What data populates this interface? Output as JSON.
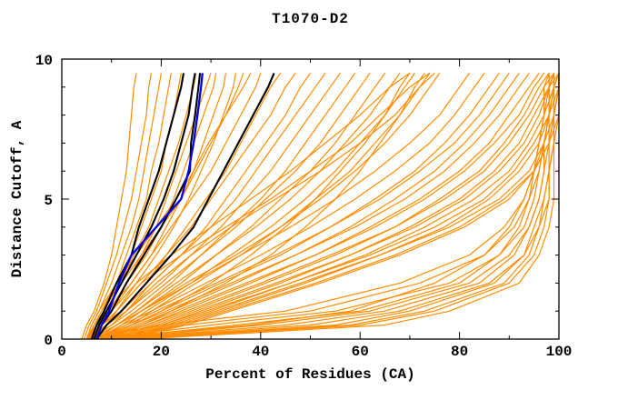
{
  "figure": {
    "background": "#ffffff"
  },
  "chart_data": {
    "type": "line",
    "title": "T1070-D2",
    "xlabel": "Percent of Residues (CA)",
    "ylabel": "Distance Cutoff, A",
    "xlim": [
      0,
      100
    ],
    "ylim": [
      0,
      10
    ],
    "x_major_ticks": [
      0,
      20,
      40,
      60,
      80,
      100
    ],
    "x_minor_ticks": [
      10,
      30,
      50,
      70,
      90
    ],
    "y_major_ticks": [
      0,
      5,
      10
    ],
    "y_minor_ticks": [
      1,
      2,
      3,
      4,
      6,
      7,
      8,
      9
    ],
    "grid": false,
    "legend": "none",
    "axis_color": "#000000",
    "series_colors": {
      "models": "#ff8c00",
      "reference": "#000000",
      "highlight": "#0000ee"
    },
    "cutoffs": [
      0,
      0.5,
      1,
      2,
      3,
      4,
      5,
      6,
      7,
      8,
      9,
      9.5
    ],
    "highlight_series": {
      "name": "blue-model",
      "percent_values": [
        7,
        8,
        9.5,
        11.5,
        14,
        19,
        24,
        25.5,
        26.5,
        27.3,
        28,
        28.3
      ]
    },
    "black_series": [
      {
        "name": "black-model-1",
        "percent_values": [
          6,
          7,
          8.5,
          11,
          14,
          15.5,
          17.5,
          19.5,
          21,
          22.5,
          24,
          24.5
        ]
      },
      {
        "name": "black-model-2",
        "percent_values": [
          6.5,
          7.5,
          9,
          12,
          15,
          18,
          20.5,
          22.5,
          24,
          25.5,
          26.3,
          26.8
        ]
      },
      {
        "name": "black-model-3",
        "percent_values": [
          7,
          8,
          10,
          13,
          16.5,
          20,
          23,
          25.8,
          26,
          26.8,
          27.5,
          27.8
        ]
      },
      {
        "name": "black-model-4",
        "percent_values": [
          7,
          9,
          12,
          17,
          22,
          26.5,
          29.5,
          32.5,
          35.5,
          38.5,
          41.5,
          42.7
        ]
      }
    ],
    "orange_series": {
      "name": "predicted-models",
      "percent_values_list": [
        [
          4,
          5,
          6.5,
          8.5,
          10,
          11,
          12,
          13,
          13.5,
          14,
          14.5,
          15
        ],
        [
          4.5,
          5.5,
          7,
          9,
          11,
          12.5,
          14,
          15,
          16,
          17,
          17.5,
          18
        ],
        [
          5,
          6,
          7.5,
          10,
          12,
          14,
          15.5,
          16.5,
          17.5,
          18.5,
          19.5,
          20
        ],
        [
          5,
          6.5,
          8,
          11,
          13,
          15,
          17,
          18,
          19.5,
          20.5,
          21.5,
          22
        ],
        [
          5.5,
          7,
          9,
          12,
          14,
          16,
          18,
          20,
          21,
          22.5,
          23.5,
          24
        ],
        [
          5,
          6.5,
          8.5,
          11.5,
          14.5,
          17.5,
          19.5,
          21.5,
          23.5,
          25,
          26.5,
          27
        ],
        [
          6,
          7.5,
          10,
          13,
          16,
          19,
          21,
          23,
          25,
          27,
          29,
          30
        ],
        [
          5.5,
          7,
          9.5,
          13,
          17,
          20,
          22.5,
          24.5,
          26.5,
          28.5,
          30.5,
          31
        ],
        [
          5,
          7,
          9,
          14,
          18,
          21,
          24,
          26.5,
          28.5,
          30.5,
          32.5,
          33
        ],
        [
          6,
          8,
          11,
          15,
          19,
          22.5,
          25.5,
          28,
          30.5,
          32.5,
          34.5,
          35
        ],
        [
          5.5,
          6.5,
          8,
          12,
          16,
          20,
          24,
          27,
          30,
          33,
          35.5,
          36.5
        ],
        [
          5,
          6,
          7.5,
          11,
          15,
          19,
          23,
          26.5,
          29.5,
          33,
          36.5,
          38
        ],
        [
          5,
          7,
          10,
          14,
          18,
          22,
          26,
          30,
          33,
          36,
          39,
          40
        ],
        [
          6,
          8,
          12,
          17,
          21,
          25,
          29,
          33,
          36,
          39,
          42,
          44
        ],
        [
          5,
          8,
          11,
          16,
          21,
          26,
          30,
          34,
          38,
          42,
          45,
          47
        ],
        [
          6,
          9,
          13,
          18,
          24,
          29,
          33,
          37,
          41,
          45,
          48,
          50
        ],
        [
          5,
          9,
          12,
          18,
          24,
          30,
          35,
          39,
          43,
          47,
          51,
          53
        ],
        [
          6,
          10,
          13,
          20,
          26,
          32,
          37,
          42,
          46,
          50,
          54,
          56
        ],
        [
          7,
          11,
          15,
          22,
          28,
          34,
          40,
          45,
          49,
          53,
          57,
          59
        ],
        [
          5,
          10,
          14,
          21,
          28,
          35,
          41,
          47,
          52,
          56,
          60,
          62
        ],
        [
          7,
          12,
          16,
          24,
          31,
          38,
          44,
          50,
          55,
          59,
          63,
          65
        ],
        [
          6,
          11,
          15,
          23,
          31,
          39,
          46,
          52,
          57,
          62,
          66,
          68
        ],
        [
          7,
          13,
          17,
          26,
          34,
          42,
          49,
          55,
          60,
          65,
          69,
          71
        ],
        [
          8,
          14,
          18,
          27,
          36,
          44,
          51,
          58,
          63,
          68,
          72,
          74
        ],
        [
          5,
          8,
          10,
          15,
          22,
          30,
          38,
          46,
          53,
          60,
          66,
          70
        ],
        [
          6,
          9,
          11,
          16,
          24,
          33,
          42,
          50,
          58,
          64,
          70,
          74
        ],
        [
          7,
          14,
          20,
          30,
          38,
          45,
          51,
          56,
          61,
          65,
          68,
          70
        ],
        [
          8,
          16,
          22,
          33,
          42,
          49,
          55,
          60,
          64,
          68,
          71,
          73
        ],
        [
          5,
          9,
          13,
          19,
          26,
          34,
          43,
          52,
          60,
          67,
          72,
          75
        ],
        [
          6,
          11,
          16,
          25,
          35,
          44,
          52,
          59,
          65,
          70,
          74,
          76
        ],
        [
          6,
          11,
          16,
          26,
          36,
          46,
          55,
          63,
          70,
          76,
          80,
          82
        ],
        [
          7,
          12,
          18,
          29,
          40,
          50,
          59,
          67,
          74,
          79,
          83,
          85
        ],
        [
          8,
          14,
          20,
          32,
          44,
          54,
          63,
          71,
          77,
          82,
          86,
          88
        ],
        [
          6,
          13,
          19,
          31,
          43,
          54,
          64,
          72,
          79,
          84,
          88,
          90
        ],
        [
          8,
          15,
          22,
          35,
          47,
          58,
          67,
          75,
          81,
          86,
          90,
          92
        ],
        [
          7,
          14,
          21,
          34,
          47,
          59,
          69,
          77,
          83,
          88,
          92,
          94
        ],
        [
          9,
          17,
          24,
          38,
          51,
          62,
          72,
          80,
          86,
          90,
          94,
          96
        ],
        [
          8,
          16,
          23,
          37,
          51,
          63,
          73,
          81,
          87,
          92,
          95,
          97
        ],
        [
          10,
          18,
          26,
          41,
          55,
          67,
          76,
          84,
          89,
          93,
          96,
          98
        ],
        [
          8,
          17,
          25,
          40,
          54,
          67,
          77,
          85,
          90,
          94,
          97,
          99
        ],
        [
          10,
          20,
          28,
          44,
          58,
          70,
          80,
          87,
          92,
          95,
          98,
          99
        ],
        [
          9,
          19,
          27,
          43,
          58,
          71,
          81,
          88,
          93,
          96,
          98,
          100
        ],
        [
          11,
          21,
          30,
          46,
          61,
          73,
          83,
          90,
          94,
          97,
          99,
          100
        ],
        [
          10,
          20,
          29,
          46,
          62,
          75,
          85,
          91,
          95,
          98,
          99,
          100
        ],
        [
          12,
          23,
          32,
          49,
          64,
          77,
          86,
          92,
          96,
          98,
          100,
          100
        ],
        [
          11,
          22,
          31,
          48,
          64,
          78,
          88,
          94,
          97,
          99,
          100,
          100
        ],
        [
          13,
          25,
          34,
          52,
          68,
          81,
          90,
          95,
          98,
          99,
          100,
          100
        ],
        [
          12,
          24,
          33,
          51,
          67,
          80,
          89,
          95,
          98,
          100,
          100,
          100
        ],
        [
          8,
          35,
          60,
          80,
          88,
          92,
          94,
          95,
          96,
          97,
          97,
          98
        ],
        [
          10,
          45,
          65,
          84,
          91,
          94,
          96,
          97,
          97,
          98,
          98,
          98
        ],
        [
          12,
          55,
          70,
          87,
          93,
          95,
          97,
          98,
          98,
          99,
          99,
          99
        ],
        [
          7,
          30,
          55,
          78,
          88,
          93,
          95,
          96,
          97,
          98,
          98,
          99
        ],
        [
          14,
          60,
          75,
          90,
          95,
          97,
          98,
          98,
          99,
          99,
          100,
          100
        ],
        [
          6,
          25,
          50,
          72,
          85,
          91,
          94,
          96,
          97,
          98,
          99,
          99
        ],
        [
          16,
          65,
          78,
          92,
          96,
          98,
          99,
          99,
          99,
          100,
          100,
          100
        ],
        [
          9,
          40,
          62,
          82,
          90,
          94,
          96,
          97,
          98,
          98,
          99,
          99
        ],
        [
          11,
          50,
          68,
          86,
          93,
          96,
          97,
          98,
          99,
          99,
          99,
          100
        ],
        [
          5,
          20,
          45,
          68,
          82,
          89,
          93,
          95,
          97,
          98,
          98,
          99
        ],
        [
          13,
          58,
          73,
          89,
          94,
          96,
          98,
          98,
          99,
          99,
          99,
          99
        ],
        [
          7,
          38,
          58,
          75,
          85,
          90,
          93,
          95,
          96,
          97,
          98,
          98
        ]
      ]
    }
  }
}
